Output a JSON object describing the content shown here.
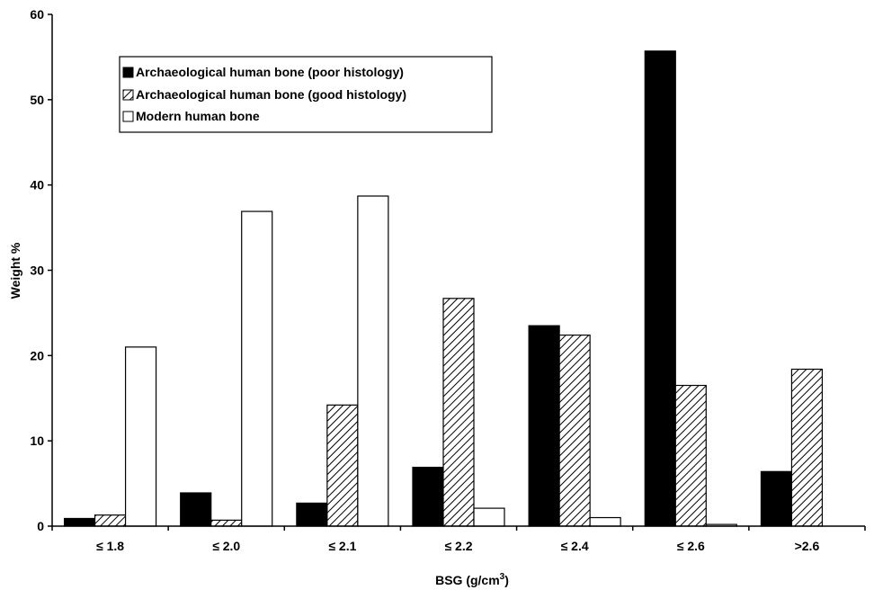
{
  "chart_data": {
    "type": "bar",
    "categories": [
      "≤ 1.8",
      "≤ 2.0",
      "≤ 2.1",
      "≤ 2.2",
      "≤ 2.4",
      "≤ 2.6",
      ">2.6"
    ],
    "series": [
      {
        "name": "Archaeological human bone (poor histology)",
        "fill": "solid-black",
        "values": [
          0.9,
          3.9,
          2.7,
          6.9,
          23.5,
          55.7,
          6.4
        ]
      },
      {
        "name": "Archaeological human bone (good histology)",
        "fill": "diagonal-hatch",
        "values": [
          1.3,
          0.7,
          14.2,
          26.7,
          22.4,
          16.5,
          18.4
        ]
      },
      {
        "name": "Modern human bone",
        "fill": "white",
        "values": [
          21.0,
          36.9,
          38.7,
          2.1,
          1.0,
          0.2,
          0
        ]
      }
    ],
    "xlabel": "BSG (g/cm",
    "xlabel_sup": "3",
    "xlabel_end": ")",
    "ylabel": "Weight %",
    "ylim": [
      0,
      60
    ],
    "yticks": [
      0,
      10,
      20,
      30,
      40,
      50,
      60
    ],
    "grid": false,
    "legend_position": "top-left",
    "colors": {
      "bar_stroke": "#000000",
      "solid": "#000000",
      "background": "#ffffff"
    }
  }
}
